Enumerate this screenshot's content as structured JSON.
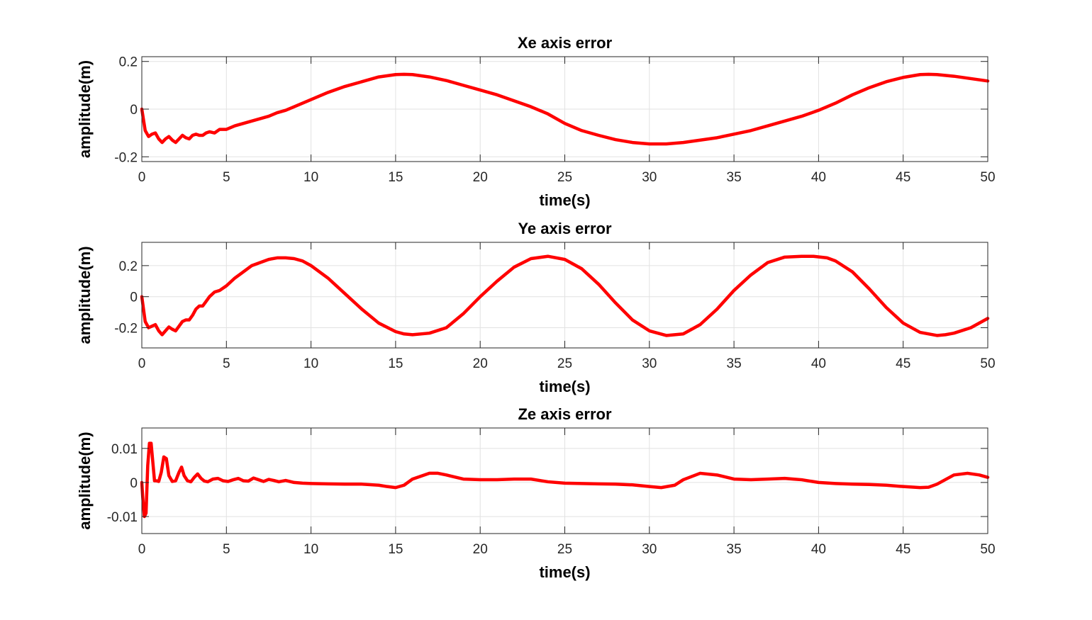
{
  "figure": {
    "background": "#ffffff"
  },
  "chart_data": [
    {
      "type": "line",
      "title": "Xe axis error",
      "xlabel": "time(s)",
      "ylabel": "amplitude(m)",
      "xlim": [
        0,
        50
      ],
      "ylim": [
        -0.22,
        0.22
      ],
      "xticks": [
        0,
        5,
        10,
        15,
        20,
        25,
        30,
        35,
        40,
        45,
        50
      ],
      "xtick_labels": [
        "0",
        "5",
        "10",
        "15",
        "20",
        "25",
        "30",
        "35",
        "40",
        "45",
        "50"
      ],
      "yticks": [
        0.2,
        0,
        -0.2
      ],
      "ytick_labels": [
        "0.2",
        "0",
        "-0.2"
      ],
      "grid": true,
      "line_color": "#ff0000",
      "series": [
        {
          "x": [
            0,
            0.2,
            0.4,
            0.6,
            0.8,
            1.0,
            1.2,
            1.4,
            1.6,
            1.8,
            2.0,
            2.2,
            2.4,
            2.6,
            2.8,
            3.0,
            3.2,
            3.4,
            3.6,
            3.8,
            4.0,
            4.3,
            4.6,
            5.0,
            5.5,
            6.0,
            6.5,
            7.0,
            7.5,
            8.0,
            8.5,
            9.0,
            10,
            11,
            12,
            13,
            14,
            15,
            15.5,
            16,
            17,
            18,
            19,
            20,
            21,
            22,
            23,
            24,
            25,
            26,
            27,
            28,
            29,
            30,
            31,
            32,
            33,
            34,
            35,
            36,
            37,
            38,
            39,
            40,
            41,
            42,
            43,
            44,
            45,
            46,
            46.5,
            47,
            48,
            49,
            50
          ],
          "y": [
            0,
            -0.09,
            -0.115,
            -0.105,
            -0.1,
            -0.125,
            -0.14,
            -0.125,
            -0.115,
            -0.13,
            -0.14,
            -0.125,
            -0.11,
            -0.12,
            -0.125,
            -0.11,
            -0.105,
            -0.11,
            -0.11,
            -0.1,
            -0.095,
            -0.1,
            -0.085,
            -0.085,
            -0.07,
            -0.06,
            -0.05,
            -0.04,
            -0.03,
            -0.015,
            -0.005,
            0.01,
            0.04,
            0.07,
            0.095,
            0.115,
            0.135,
            0.145,
            0.146,
            0.145,
            0.135,
            0.12,
            0.1,
            0.08,
            0.06,
            0.035,
            0.01,
            -0.02,
            -0.06,
            -0.09,
            -0.11,
            -0.128,
            -0.14,
            -0.146,
            -0.146,
            -0.14,
            -0.13,
            -0.12,
            -0.105,
            -0.09,
            -0.07,
            -0.05,
            -0.03,
            -0.005,
            0.025,
            0.06,
            0.09,
            0.115,
            0.133,
            0.145,
            0.146,
            0.145,
            0.138,
            0.128,
            0.118
          ]
        }
      ]
    },
    {
      "type": "line",
      "title": "Ye axis error",
      "xlabel": "time(s)",
      "ylabel": "amplitude(m)",
      "xlim": [
        0,
        50
      ],
      "ylim": [
        -0.33,
        0.35
      ],
      "xticks": [
        0,
        5,
        10,
        15,
        20,
        25,
        30,
        35,
        40,
        45,
        50
      ],
      "xtick_labels": [
        "0",
        "5",
        "10",
        "15",
        "20",
        "25",
        "30",
        "35",
        "40",
        "45",
        "50"
      ],
      "yticks": [
        0.2,
        0,
        -0.2
      ],
      "ytick_labels": [
        "0.2",
        "0",
        "-0.2"
      ],
      "grid": true,
      "line_color": "#ff0000",
      "series": [
        {
          "x": [
            0,
            0.2,
            0.4,
            0.6,
            0.8,
            1.0,
            1.2,
            1.4,
            1.6,
            1.8,
            2.0,
            2.2,
            2.4,
            2.6,
            2.8,
            3.0,
            3.2,
            3.4,
            3.6,
            3.8,
            4.0,
            4.3,
            4.6,
            5.0,
            5.5,
            6.0,
            6.5,
            7.0,
            7.5,
            8.0,
            8.5,
            9.0,
            9.5,
            10,
            11,
            12,
            13,
            14,
            15,
            15.5,
            16,
            17,
            18,
            19,
            20,
            21,
            22,
            23,
            24,
            25,
            26,
            27,
            28,
            29,
            30,
            31,
            32,
            33,
            34,
            35,
            36,
            37,
            38,
            39,
            39.7,
            40.5,
            41,
            42,
            43,
            44,
            45,
            46,
            47,
            47.5,
            48,
            49,
            50
          ],
          "y": [
            0,
            -0.16,
            -0.2,
            -0.19,
            -0.18,
            -0.22,
            -0.245,
            -0.22,
            -0.195,
            -0.21,
            -0.22,
            -0.19,
            -0.16,
            -0.15,
            -0.15,
            -0.12,
            -0.08,
            -0.06,
            -0.06,
            -0.03,
            0.0,
            0.03,
            0.04,
            0.07,
            0.12,
            0.16,
            0.2,
            0.22,
            0.24,
            0.25,
            0.25,
            0.245,
            0.23,
            0.2,
            0.12,
            0.02,
            -0.08,
            -0.17,
            -0.225,
            -0.24,
            -0.245,
            -0.235,
            -0.2,
            -0.11,
            0.0,
            0.1,
            0.19,
            0.245,
            0.26,
            0.24,
            0.18,
            0.08,
            -0.04,
            -0.15,
            -0.22,
            -0.25,
            -0.24,
            -0.18,
            -0.08,
            0.04,
            0.14,
            0.22,
            0.255,
            0.26,
            0.26,
            0.25,
            0.23,
            0.16,
            0.05,
            -0.07,
            -0.17,
            -0.23,
            -0.25,
            -0.245,
            -0.235,
            -0.2,
            -0.14
          ]
        }
      ]
    },
    {
      "type": "line",
      "title": "Ze axis error",
      "xlabel": "time(s)",
      "ylabel": "amplitude(m)",
      "xlim": [
        0,
        50
      ],
      "ylim": [
        -0.015,
        0.016
      ],
      "xticks": [
        0,
        5,
        10,
        15,
        20,
        25,
        30,
        35,
        40,
        45,
        50
      ],
      "xtick_labels": [
        "0",
        "5",
        "10",
        "15",
        "20",
        "25",
        "30",
        "35",
        "40",
        "45",
        "50"
      ],
      "yticks": [
        0.01,
        0,
        -0.01
      ],
      "ytick_labels": [
        "0.01",
        "0",
        "-0.01"
      ],
      "grid": true,
      "line_color": "#ff0000",
      "series": [
        {
          "x": [
            0,
            0.05,
            0.15,
            0.25,
            0.35,
            0.45,
            0.55,
            0.65,
            0.75,
            0.85,
            1.0,
            1.15,
            1.3,
            1.45,
            1.6,
            1.8,
            2.0,
            2.2,
            2.35,
            2.5,
            2.7,
            2.9,
            3.1,
            3.3,
            3.5,
            3.7,
            3.9,
            4.2,
            4.5,
            4.8,
            5.1,
            5.4,
            5.7,
            6.0,
            6.3,
            6.6,
            6.9,
            7.2,
            7.5,
            7.8,
            8.1,
            8.5,
            9.0,
            9.5,
            10,
            11,
            12,
            13,
            14,
            14.5,
            15,
            15.5,
            16,
            17,
            17.5,
            18,
            19,
            20,
            21,
            22,
            23,
            24,
            25,
            26,
            27,
            28,
            29,
            30,
            30.7,
            31.5,
            32,
            33,
            34,
            35,
            36,
            37,
            38,
            38.5,
            39,
            40,
            41,
            42,
            43,
            44,
            45,
            46,
            46.5,
            47,
            48,
            48.8,
            49.5,
            50
          ],
          "y": [
            0,
            -0.004,
            -0.01,
            -0.009,
            0.005,
            0.0115,
            0.0115,
            0.006,
            0.0005,
            0.0005,
            0.0003,
            0.003,
            0.0075,
            0.007,
            0.002,
            0.0003,
            0.0005,
            0.003,
            0.0045,
            0.002,
            0.0005,
            0.0002,
            0.0015,
            0.0025,
            0.0012,
            0.0004,
            0.0002,
            0.001,
            0.0012,
            0.0005,
            0.0003,
            0.0008,
            0.0012,
            0.0005,
            0.0004,
            0.0013,
            0.0008,
            0.0003,
            0.0009,
            0.0006,
            0.0002,
            0.0006,
            0.0,
            -0.0002,
            -0.0003,
            -0.0004,
            -0.0005,
            -0.0005,
            -0.0008,
            -0.0012,
            -0.0015,
            -0.0008,
            0.001,
            0.0027,
            0.0027,
            0.0022,
            0.001,
            0.0008,
            0.0008,
            0.001,
            0.001,
            0.0002,
            -0.0002,
            -0.0003,
            -0.0004,
            -0.0005,
            -0.0007,
            -0.0012,
            -0.0015,
            -0.0008,
            0.0008,
            0.0027,
            0.0022,
            0.001,
            0.0008,
            0.001,
            0.0012,
            0.001,
            0.0008,
            0.0,
            -0.0003,
            -0.0005,
            -0.0006,
            -0.0008,
            -0.0012,
            -0.0015,
            -0.0014,
            -0.0005,
            0.0022,
            0.0027,
            0.0022,
            0.0015
          ]
        }
      ]
    }
  ]
}
